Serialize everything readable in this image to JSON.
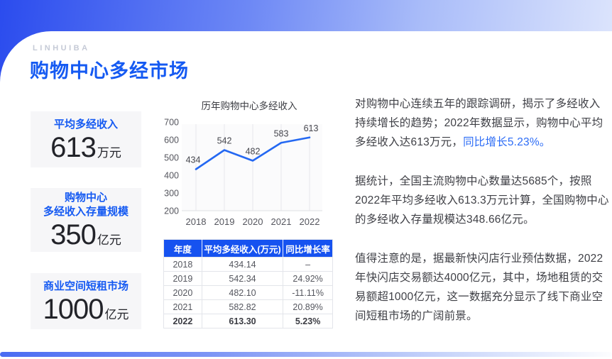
{
  "brand": {
    "logo": "LINHUIBA"
  },
  "page": {
    "title": "购物中心多经市场"
  },
  "colors": {
    "accent_blue": "#155af2",
    "line_blue": "#2468f2",
    "table_header_bg": "#1652f0",
    "card_bg": "#f6f6f8",
    "banner_gradient_start": "#2b4cee",
    "banner_gradient_end": "#dde5fc"
  },
  "stats": [
    {
      "label": "平均多经收入",
      "value": "613",
      "unit": "万元"
    },
    {
      "label": "购物中心\n多经收入存量规模",
      "value": "350",
      "unit": "亿元"
    },
    {
      "label": "商业空间短租市场",
      "value": "1000",
      "unit": "亿元"
    }
  ],
  "chart_data": {
    "type": "line",
    "title": "历年购物中心多经收入",
    "x": [
      "2018",
      "2019",
      "2020",
      "2021",
      "2022"
    ],
    "values": [
      434,
      542,
      482,
      583,
      613
    ],
    "ylim": [
      200,
      700
    ],
    "yticks": [
      700,
      600,
      500,
      400,
      300,
      200
    ],
    "grid": "vertical",
    "legend": "none",
    "line_color": "#2468f2",
    "data_labels": [
      434,
      542,
      482,
      583,
      613
    ]
  },
  "table": {
    "headers": [
      "年度",
      "平均多经收入(万元)",
      "同比增长率"
    ],
    "rows": [
      [
        "2018",
        "434.14",
        "–"
      ],
      [
        "2019",
        "542.34",
        "24.92%"
      ],
      [
        "2020",
        "482.10",
        "-11.11%"
      ],
      [
        "2021",
        "582.82",
        "20.89%"
      ],
      [
        "2022",
        "613.30",
        "5.23%"
      ]
    ],
    "bold_row_index": 4
  },
  "paragraphs": [
    {
      "text": "对购物中心连续五年的跟踪调研，揭示了多经收入持续增长的趋势；2022年数据显示，购物中心平均多经收入达613万元，",
      "highlight": "同比增长5.23%。"
    },
    {
      "text": "据统计，全国主流购物中心数量达5685个，按照2022年平均多经收入613.3万元计算，全国购物中心的多经收入存量规模达348.66亿元。"
    },
    {
      "text": "值得注意的是，据最新快闪店行业预估数据，2022年快闪店交易额达4000亿元，其中，场地租赁的交易额超1000亿元，这一数据充分显示了线下商业空间短租市场的广阔前景。"
    }
  ]
}
